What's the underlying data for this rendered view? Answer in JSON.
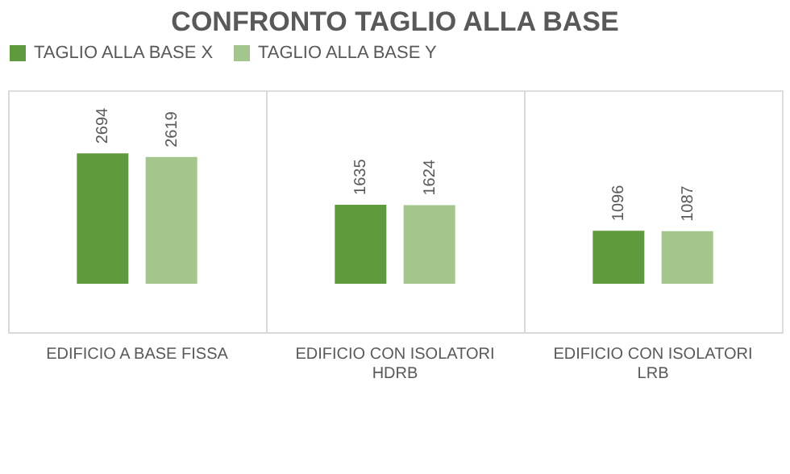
{
  "chart_data": {
    "type": "bar",
    "title": "CONFRONTO TAGLIO ALLA BASE",
    "categories": [
      "EDIFICIO A BASE FISSA",
      "EDIFICIO CON ISOLATORI HDRB",
      "EDIFICIO CON ISOLATORI LRB"
    ],
    "series": [
      {
        "name": "TAGLIO ALLA BASE X",
        "color": "#5f9a3c",
        "values": [
          2694,
          1635,
          1096
        ]
      },
      {
        "name": "TAGLIO ALLA BASE Y",
        "color": "#a3c68c",
        "values": [
          2619,
          1624,
          1087
        ]
      }
    ],
    "data_labels": true,
    "legend": "top",
    "grid": "x",
    "tick_labels": "x"
  }
}
